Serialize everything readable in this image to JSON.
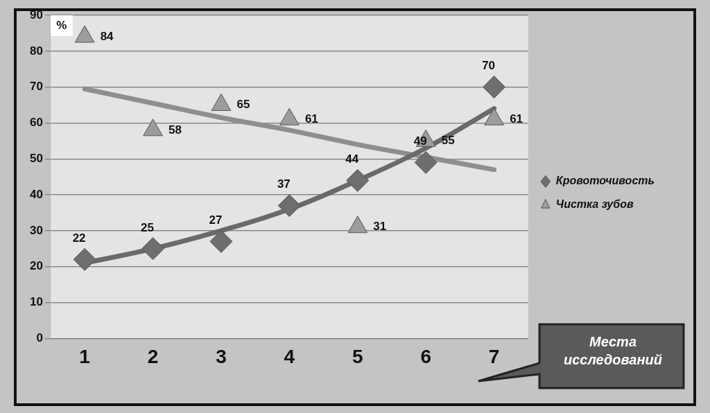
{
  "chart_data": {
    "type": "scatter",
    "ylabel": "%",
    "xlabel": "Места исследований",
    "categories": [
      "1",
      "2",
      "3",
      "4",
      "5",
      "6",
      "7"
    ],
    "ylim": [
      0,
      90
    ],
    "yticks": [
      0,
      10,
      20,
      30,
      40,
      50,
      60,
      70,
      80,
      90
    ],
    "grid": "y",
    "legend": "right",
    "series": [
      {
        "name": "Кровоточивость",
        "type": "scatter",
        "marker": "diamond",
        "color": "#6e6e6e",
        "values": [
          22,
          25,
          27,
          37,
          44,
          49,
          70
        ],
        "value_labels": [
          "22",
          "25",
          "27",
          "37",
          "44",
          "49",
          "70"
        ]
      },
      {
        "name": "Чистка зубов",
        "type": "scatter",
        "marker": "triangle",
        "color": "#9c9c9c",
        "values": [
          84,
          58,
          65,
          61,
          31,
          55,
          61
        ],
        "value_labels": [
          "84",
          "58",
          "65",
          "61",
          "31",
          "55",
          "61"
        ]
      },
      {
        "type": "line",
        "marker": "none",
        "color": "#6a6a6a",
        "values": [
          21,
          25,
          30,
          36,
          44,
          53,
          64
        ]
      },
      {
        "type": "line",
        "marker": "none",
        "color": "#8e8e8e",
        "values": [
          69.5,
          65.5,
          61.5,
          58,
          54,
          50.5,
          47
        ]
      }
    ]
  }
}
